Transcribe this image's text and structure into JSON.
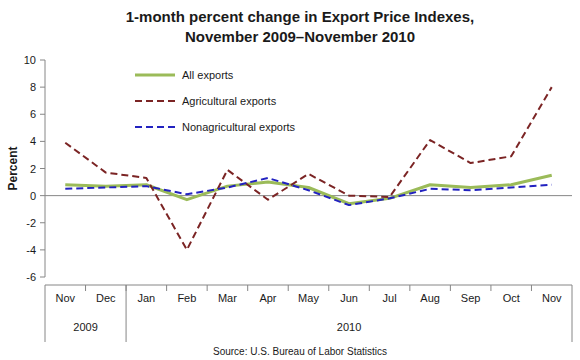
{
  "chart_data": {
    "type": "line",
    "title": "1-month percent change in Export Price Indexes,",
    "subtitle": "November 2009–November 2010",
    "y_label": "Percent",
    "source": "Source: U.S. Bureau of Labor Statistics",
    "categories": [
      "Nov",
      "Dec",
      "Jan",
      "Feb",
      "Mar",
      "Apr",
      "May",
      "Jun",
      "Jul",
      "Aug",
      "Sep",
      "Oct",
      "Nov"
    ],
    "groups": [
      {
        "label": "2009",
        "count": 2
      },
      {
        "label": "2010",
        "count": 11
      }
    ],
    "series": [
      {
        "name": "All exports",
        "color": "#9bbb59",
        "line_style": "solid",
        "values": [
          0.8,
          0.7,
          0.8,
          -0.3,
          0.7,
          1.0,
          0.6,
          -0.6,
          -0.2,
          0.8,
          0.6,
          0.8,
          1.5
        ]
      },
      {
        "name": "Agricultural exports",
        "color": "#7b2424",
        "line_style": "dashed",
        "values": [
          3.9,
          1.7,
          1.3,
          -4.0,
          1.9,
          -0.3,
          1.6,
          0.0,
          -0.1,
          4.1,
          2.4,
          2.9,
          8.0
        ]
      },
      {
        "name": "Nonagricultural exports",
        "color": "#2222c0",
        "line_style": "dashed",
        "values": [
          0.5,
          0.6,
          0.7,
          0.1,
          0.6,
          1.3,
          0.4,
          -0.7,
          -0.2,
          0.5,
          0.4,
          0.6,
          0.8
        ]
      }
    ],
    "ylim": [
      -6,
      10
    ],
    "yticks": [
      -6,
      -4,
      -2,
      0,
      2,
      4,
      6,
      8,
      10
    ],
    "grid": false,
    "legend": "top-left"
  }
}
